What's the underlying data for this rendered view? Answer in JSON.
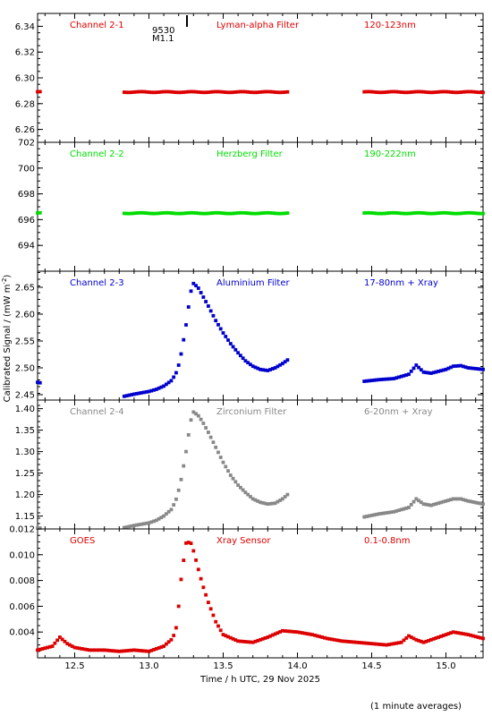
{
  "figure": {
    "xlabel": "Time / h UTC, 29 Nov 2025",
    "ylabel": "Calibrated Signal / (mW m",
    "ylabel_sup": "-2",
    "ylabel_close": ")",
    "footnote": "(1 minute averages)",
    "flare_class": "M1.1",
    "flare_id": "9530"
  },
  "chart_data": [
    {
      "type": "scatter",
      "channel": "Channel 2-1",
      "filter": "Lyman-alpha Filter",
      "band": "120-123nm",
      "color": "#dd0000",
      "xlim": [
        12.25,
        15.25
      ],
      "ylim": [
        6.25,
        6.35
      ],
      "yticks": [
        "6.26",
        "6.28",
        "6.30",
        "6.32",
        "6.34"
      ],
      "shape": "flat",
      "base": 6.289,
      "gaps": [
        [
          12.27,
          12.82
        ],
        [
          13.95,
          14.45
        ]
      ]
    },
    {
      "type": "scatter",
      "channel": "Channel 2-2",
      "filter": "Herzberg Filter",
      "band": "190-222nm",
      "color": "#00dd00",
      "xlim": [
        12.25,
        15.25
      ],
      "ylim": [
        692,
        702
      ],
      "yticks": [
        "694",
        "696",
        "698",
        "700",
        "702"
      ],
      "shape": "flat",
      "base": 696.5,
      "gaps": [
        [
          12.27,
          12.82
        ],
        [
          13.95,
          14.45
        ]
      ]
    },
    {
      "type": "scatter",
      "channel": "Channel 2-3",
      "filter": "Aluminium Filter",
      "band": "17-80nm + Xray",
      "color": "#0000cc",
      "xlim": [
        12.25,
        15.25
      ],
      "ylim": [
        2.44,
        2.68
      ],
      "yticks": [
        "2.45",
        "2.50",
        "2.55",
        "2.60",
        "2.65"
      ],
      "shape": "curve",
      "gaps": [
        [
          12.27,
          12.82
        ],
        [
          13.95,
          14.45
        ]
      ],
      "x": [
        12.25,
        12.8,
        12.9,
        13.0,
        13.05,
        13.1,
        13.15,
        13.18,
        13.2,
        13.22,
        13.25,
        13.28,
        13.3,
        13.33,
        13.36,
        13.4,
        13.45,
        13.5,
        13.55,
        13.6,
        13.65,
        13.7,
        13.75,
        13.8,
        13.85,
        13.9,
        13.95,
        14.45,
        14.55,
        14.65,
        14.75,
        14.8,
        14.85,
        14.9,
        15.0,
        15.05,
        15.1,
        15.15,
        15.25
      ],
      "y": [
        2.473,
        2.445,
        2.451,
        2.456,
        2.46,
        2.466,
        2.476,
        2.488,
        2.505,
        2.53,
        2.58,
        2.64,
        2.657,
        2.65,
        2.635,
        2.615,
        2.588,
        2.565,
        2.545,
        2.528,
        2.513,
        2.503,
        2.497,
        2.495,
        2.5,
        2.508,
        2.518,
        2.475,
        2.478,
        2.48,
        2.488,
        2.505,
        2.492,
        2.49,
        2.497,
        2.503,
        2.504,
        2.5,
        2.497
      ]
    },
    {
      "type": "scatter",
      "channel": "Channel 2-4",
      "filter": "Zirconium Filter",
      "band": "6-20nm + Xray",
      "color": "#888888",
      "xlim": [
        12.25,
        15.25
      ],
      "ylim": [
        1.12,
        1.42
      ],
      "yticks": [
        "1.15",
        "1.20",
        "1.25",
        "1.30",
        "1.35",
        "1.40"
      ],
      "shape": "curve",
      "gaps": [
        [
          12.27,
          12.82
        ],
        [
          13.95,
          14.45
        ]
      ],
      "x": [
        12.82,
        12.9,
        13.0,
        13.05,
        13.1,
        13.15,
        13.18,
        13.2,
        13.22,
        13.25,
        13.28,
        13.3,
        13.33,
        13.36,
        13.4,
        13.45,
        13.5,
        13.55,
        13.6,
        13.65,
        13.7,
        13.75,
        13.8,
        13.85,
        13.9,
        13.95,
        14.45,
        14.55,
        14.65,
        14.75,
        14.8,
        14.85,
        14.9,
        15.0,
        15.05,
        15.1,
        15.15,
        15.25
      ],
      "y": [
        1.122,
        1.128,
        1.134,
        1.14,
        1.15,
        1.165,
        1.185,
        1.21,
        1.24,
        1.3,
        1.37,
        1.392,
        1.385,
        1.37,
        1.345,
        1.31,
        1.275,
        1.245,
        1.222,
        1.205,
        1.19,
        1.182,
        1.178,
        1.18,
        1.19,
        1.205,
        1.148,
        1.155,
        1.16,
        1.17,
        1.19,
        1.178,
        1.175,
        1.185,
        1.19,
        1.19,
        1.185,
        1.178
      ]
    },
    {
      "type": "scatter",
      "channel": "GOES",
      "filter": "Xray Sensor",
      "band": "0.1-0.8nm",
      "color": "#dd0000",
      "xlim": [
        12.25,
        15.25
      ],
      "ylim": [
        0.002,
        0.012
      ],
      "yticks": [
        "0.004",
        "0.006",
        "0.008",
        "0.010",
        "0.012"
      ],
      "shape": "curve",
      "gaps": [],
      "x": [
        12.25,
        12.35,
        12.4,
        12.45,
        12.5,
        12.6,
        12.7,
        12.8,
        12.9,
        13.0,
        13.05,
        13.1,
        13.15,
        13.18,
        13.2,
        13.22,
        13.25,
        13.28,
        13.3,
        13.33,
        13.36,
        13.4,
        13.45,
        13.5,
        13.6,
        13.7,
        13.8,
        13.9,
        14.0,
        14.1,
        14.2,
        14.3,
        14.4,
        14.5,
        14.6,
        14.7,
        14.75,
        14.8,
        14.85,
        14.95,
        15.05,
        15.15,
        15.25
      ],
      "y": [
        0.0026,
        0.0029,
        0.0036,
        0.0031,
        0.0028,
        0.0026,
        0.0026,
        0.0025,
        0.0026,
        0.0025,
        0.0027,
        0.0029,
        0.0034,
        0.004,
        0.006,
        0.0085,
        0.0109,
        0.011,
        0.0103,
        0.009,
        0.0077,
        0.0063,
        0.0048,
        0.0038,
        0.0033,
        0.0032,
        0.0036,
        0.0041,
        0.004,
        0.0038,
        0.0035,
        0.0033,
        0.0032,
        0.0031,
        0.003,
        0.0032,
        0.0037,
        0.0034,
        0.0032,
        0.0036,
        0.004,
        0.0038,
        0.0035
      ]
    }
  ],
  "xaxis": {
    "ticks": [
      "12.5",
      "13.0",
      "13.5",
      "14.0",
      "14.5",
      "15.0"
    ],
    "values": [
      12.5,
      13.0,
      13.5,
      14.0,
      14.5,
      15.0
    ]
  }
}
